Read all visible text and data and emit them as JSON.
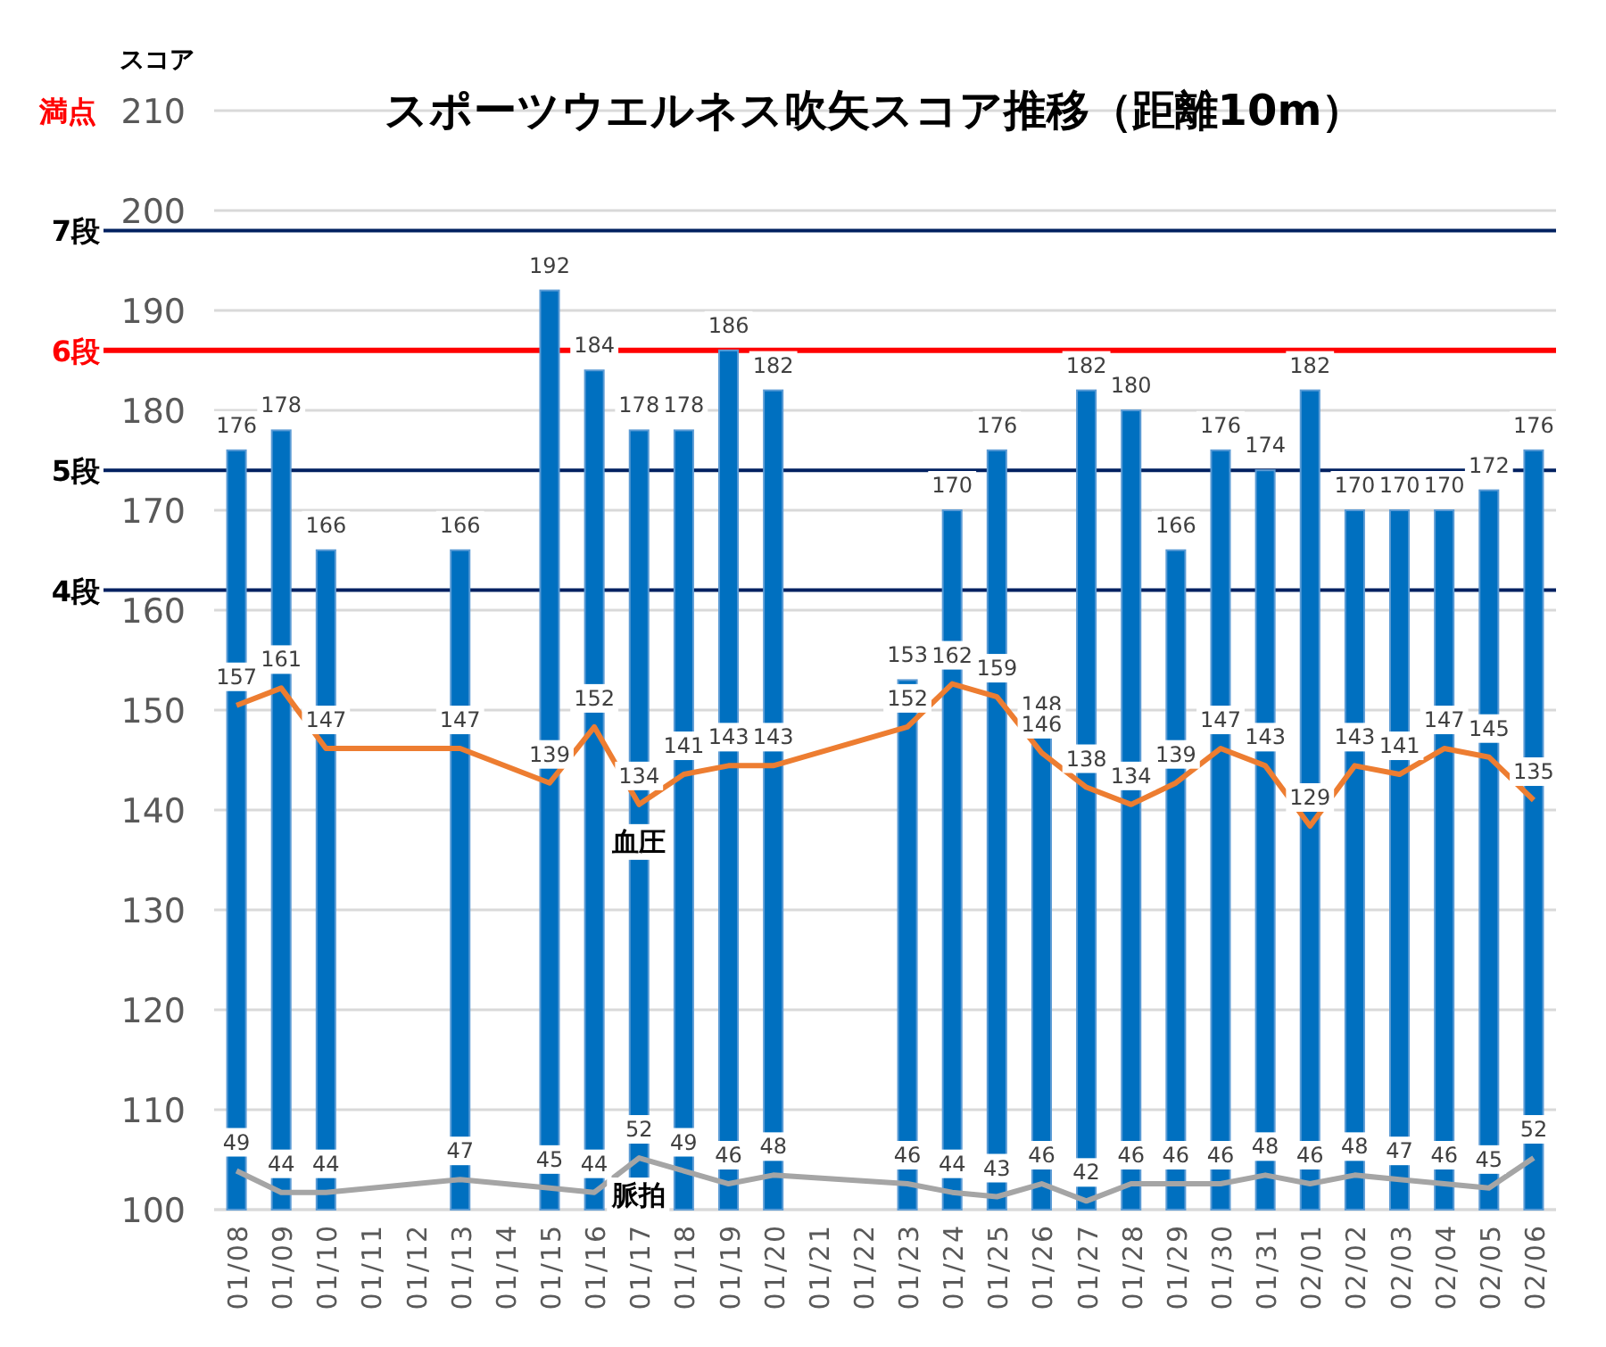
{
  "chart_data": {
    "type": "bar",
    "title": "スポーツウエルネス吹矢スコア推移（距離10m）",
    "ylabel": "スコア",
    "categories": [
      "01/08",
      "01/09",
      "01/10",
      "01/11",
      "01/12",
      "01/13",
      "01/14",
      "01/15",
      "01/16",
      "01/17",
      "01/18",
      "01/19",
      "01/20",
      "01/21",
      "01/22",
      "01/23",
      "01/24",
      "01/25",
      "01/26",
      "01/27",
      "01/28",
      "01/29",
      "01/30",
      "01/31",
      "02/01",
      "02/02",
      "02/03",
      "02/04",
      "02/05",
      "02/06"
    ],
    "series": [
      {
        "color": "#0070c0",
        "values": [
          176,
          178,
          166,
          null,
          null,
          166,
          null,
          192,
          184,
          178,
          178,
          186,
          182,
          null,
          null,
          153,
          170,
          176,
          148,
          182,
          180,
          166,
          176,
          174,
          182,
          170,
          170,
          170,
          172,
          176
        ]
      },
      {
        "type": "line",
        "name": "血圧",
        "color": "#ed7d31",
        "axis": "y2",
        "x": [
          "01/08",
          "01/09",
          "01/10",
          "01/13",
          "01/15",
          "01/16",
          "01/17",
          "01/18",
          "01/19",
          "01/20",
          "01/23",
          "01/24",
          "01/25",
          "01/26",
          "01/27",
          "01/28",
          "01/29",
          "01/30",
          "01/31",
          "02/01",
          "02/02",
          "02/03",
          "02/04",
          "02/05",
          "02/06"
        ],
        "values": [
          157,
          161,
          147,
          147,
          139,
          152,
          134,
          141,
          143,
          143,
          152,
          162,
          159,
          146,
          138,
          134,
          139,
          147,
          143,
          129,
          143,
          141,
          147,
          145,
          135
        ]
      },
      {
        "type": "line",
        "name": "脈拍",
        "color": "#a5a5a5",
        "axis": "y2",
        "x": [
          "01/08",
          "01/09",
          "01/10",
          "01/13",
          "01/15",
          "01/16",
          "01/17",
          "01/18",
          "01/19",
          "01/20",
          "01/23",
          "01/24",
          "01/25",
          "01/26",
          "01/27",
          "01/28",
          "01/29",
          "01/30",
          "01/31",
          "02/01",
          "02/02",
          "02/03",
          "02/04",
          "02/05",
          "02/06"
        ],
        "values": [
          49,
          44,
          44,
          47,
          45,
          44,
          52,
          49,
          46,
          48,
          46,
          44,
          43,
          46,
          42,
          46,
          46,
          46,
          48,
          46,
          48,
          47,
          46,
          45,
          52
        ]
      }
    ],
    "ylim": [
      100,
      210
    ],
    "yticks": [
      100,
      110,
      120,
      130,
      140,
      150,
      160,
      170,
      180,
      190,
      200,
      210
    ],
    "y2lim": [
      40,
      295
    ],
    "grid": "y",
    "data_labels": true,
    "ref_lines": [
      {
        "axis": "y",
        "value": 198,
        "label": "7段",
        "color": "#002060"
      },
      {
        "axis": "y",
        "value": 186,
        "label": "6段",
        "color": "#ff0000"
      },
      {
        "axis": "y",
        "value": 174,
        "label": "5段",
        "color": "#002060"
      },
      {
        "axis": "y",
        "value": 162,
        "label": "4段",
        "color": "#002060"
      }
    ],
    "annotations": [
      "満点"
    ]
  }
}
